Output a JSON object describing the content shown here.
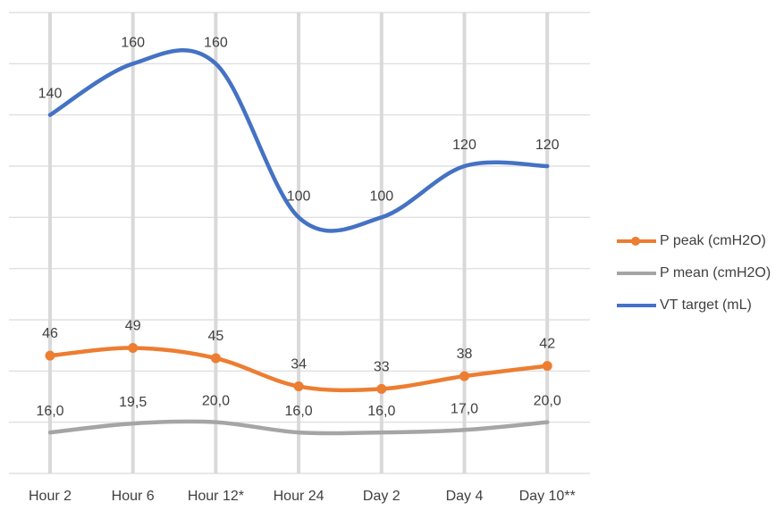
{
  "chart_data": {
    "type": "line",
    "categories": [
      "Hour 2",
      "Hour 6",
      "Hour 12*",
      "Hour 24",
      "Day 2",
      "Day 4",
      "Day 10**"
    ],
    "ylim": [
      0,
      180
    ],
    "grid": true,
    "legend_position": "right",
    "series": [
      {
        "name": "P peak (cmH2O)",
        "color": "#ED7D31",
        "markers": true,
        "values": [
          46,
          49,
          45,
          34,
          33,
          38,
          42
        ],
        "labels": [
          "46",
          "49",
          "45",
          "34",
          "33",
          "38",
          "42"
        ]
      },
      {
        "name": "P mean (cmH2O)",
        "color": "#A5A5A5",
        "markers": false,
        "values": [
          16.0,
          19.5,
          20.0,
          16.0,
          16.0,
          17.0,
          20.0
        ],
        "labels": [
          "16,0",
          "19,5",
          "20,0",
          "16,0",
          "16,0",
          "17,0",
          "20,0"
        ]
      },
      {
        "name": "VT target (mL)",
        "color": "#4472C4",
        "markers": false,
        "values": [
          140,
          160,
          160,
          100,
          100,
          120,
          120
        ],
        "labels": [
          "140",
          "160",
          "160",
          "100",
          "100",
          "120",
          "120"
        ]
      }
    ]
  }
}
